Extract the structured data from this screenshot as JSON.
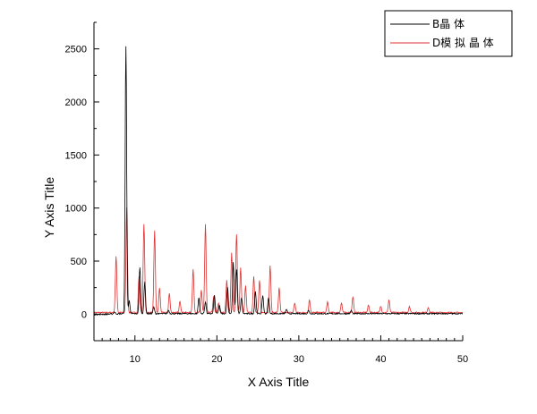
{
  "chart_data": {
    "type": "line",
    "title": "",
    "xlabel": "X Axis Title",
    "ylabel": "Y Axis Title",
    "xlim": [
      5,
      50
    ],
    "ylim": [
      -250,
      2750
    ],
    "x_ticks": [
      10,
      20,
      30,
      40,
      50
    ],
    "y_ticks": [
      0,
      500,
      1000,
      1500,
      2000,
      2500
    ],
    "grid": false,
    "legend_position": "top-right",
    "series": [
      {
        "name": "B晶 体",
        "color": "#000000",
        "baseline": 5,
        "peaks": [
          {
            "x": 7.5,
            "y": 20
          },
          {
            "x": 8.9,
            "y": 2520
          },
          {
            "x": 9.3,
            "y": 120
          },
          {
            "x": 10.6,
            "y": 440
          },
          {
            "x": 11.2,
            "y": 300
          },
          {
            "x": 12.3,
            "y": 60
          },
          {
            "x": 14.1,
            "y": 30
          },
          {
            "x": 17.8,
            "y": 150
          },
          {
            "x": 18.6,
            "y": 110
          },
          {
            "x": 19.7,
            "y": 170
          },
          {
            "x": 20.3,
            "y": 80
          },
          {
            "x": 21.3,
            "y": 250
          },
          {
            "x": 22.0,
            "y": 480
          },
          {
            "x": 22.4,
            "y": 420
          },
          {
            "x": 23.0,
            "y": 150
          },
          {
            "x": 24.7,
            "y": 210
          },
          {
            "x": 25.6,
            "y": 170
          },
          {
            "x": 26.3,
            "y": 150
          },
          {
            "x": 28.5,
            "y": 40
          },
          {
            "x": 31.2,
            "y": 30
          },
          {
            "x": 36.4,
            "y": 30
          }
        ]
      },
      {
        "name": "D模 拟 晶 体",
        "color": "#e03030",
        "baseline": 15,
        "peaks": [
          {
            "x": 7.7,
            "y": 530
          },
          {
            "x": 9.0,
            "y": 990
          },
          {
            "x": 10.5,
            "y": 340
          },
          {
            "x": 11.1,
            "y": 840
          },
          {
            "x": 12.4,
            "y": 770
          },
          {
            "x": 13.0,
            "y": 230
          },
          {
            "x": 14.2,
            "y": 180
          },
          {
            "x": 15.5,
            "y": 110
          },
          {
            "x": 17.1,
            "y": 410
          },
          {
            "x": 18.1,
            "y": 210
          },
          {
            "x": 18.6,
            "y": 830
          },
          {
            "x": 19.6,
            "y": 150
          },
          {
            "x": 20.2,
            "y": 90
          },
          {
            "x": 21.2,
            "y": 300
          },
          {
            "x": 21.8,
            "y": 560
          },
          {
            "x": 22.4,
            "y": 740
          },
          {
            "x": 22.9,
            "y": 420
          },
          {
            "x": 23.5,
            "y": 250
          },
          {
            "x": 24.5,
            "y": 340
          },
          {
            "x": 25.2,
            "y": 300
          },
          {
            "x": 26.5,
            "y": 440
          },
          {
            "x": 27.6,
            "y": 230
          },
          {
            "x": 29.5,
            "y": 90
          },
          {
            "x": 31.3,
            "y": 120
          },
          {
            "x": 33.5,
            "y": 100
          },
          {
            "x": 35.2,
            "y": 90
          },
          {
            "x": 36.6,
            "y": 150
          },
          {
            "x": 38.5,
            "y": 70
          },
          {
            "x": 40.0,
            "y": 60
          },
          {
            "x": 41.0,
            "y": 120
          },
          {
            "x": 43.5,
            "y": 60
          },
          {
            "x": 45.8,
            "y": 50
          }
        ]
      }
    ]
  }
}
